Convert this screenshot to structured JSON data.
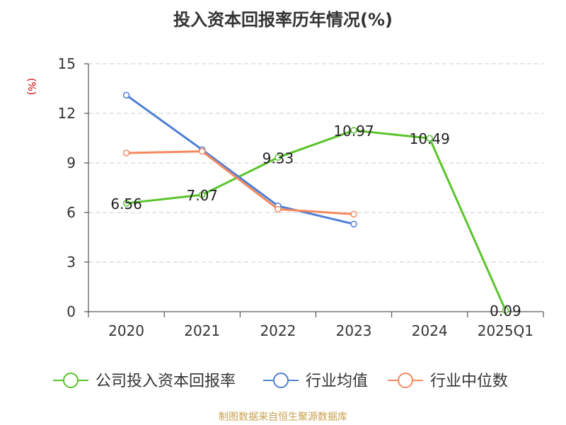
{
  "chart_data": {
    "type": "line",
    "title": "投入资本回报率历年情况(%)",
    "ylabel": "(%)",
    "xlabel": "",
    "categories": [
      "2020",
      "2021",
      "2022",
      "2023",
      "2024",
      "2025Q1"
    ],
    "ylim": [
      0,
      15
    ],
    "yticks": [
      0,
      3,
      6,
      9,
      12,
      15
    ],
    "grid": true,
    "legend_position": "bottom",
    "series": [
      {
        "name": "公司投入资本回报率",
        "color": "#5ac42a",
        "values": [
          6.56,
          7.07,
          9.33,
          10.97,
          10.49,
          0.09
        ],
        "labels": [
          "6.56",
          "7.07",
          "9.33",
          "10.97",
          "10.49",
          "0.09"
        ]
      },
      {
        "name": "行业均值",
        "color": "#4f7fd6",
        "values": [
          13.1,
          9.8,
          6.4,
          5.3,
          null,
          null
        ]
      },
      {
        "name": "行业中位数",
        "color": "#f4895f",
        "values": [
          9.6,
          9.7,
          6.2,
          5.9,
          null,
          null
        ]
      }
    ]
  },
  "source": "制图数据来自恒生聚源数据库"
}
